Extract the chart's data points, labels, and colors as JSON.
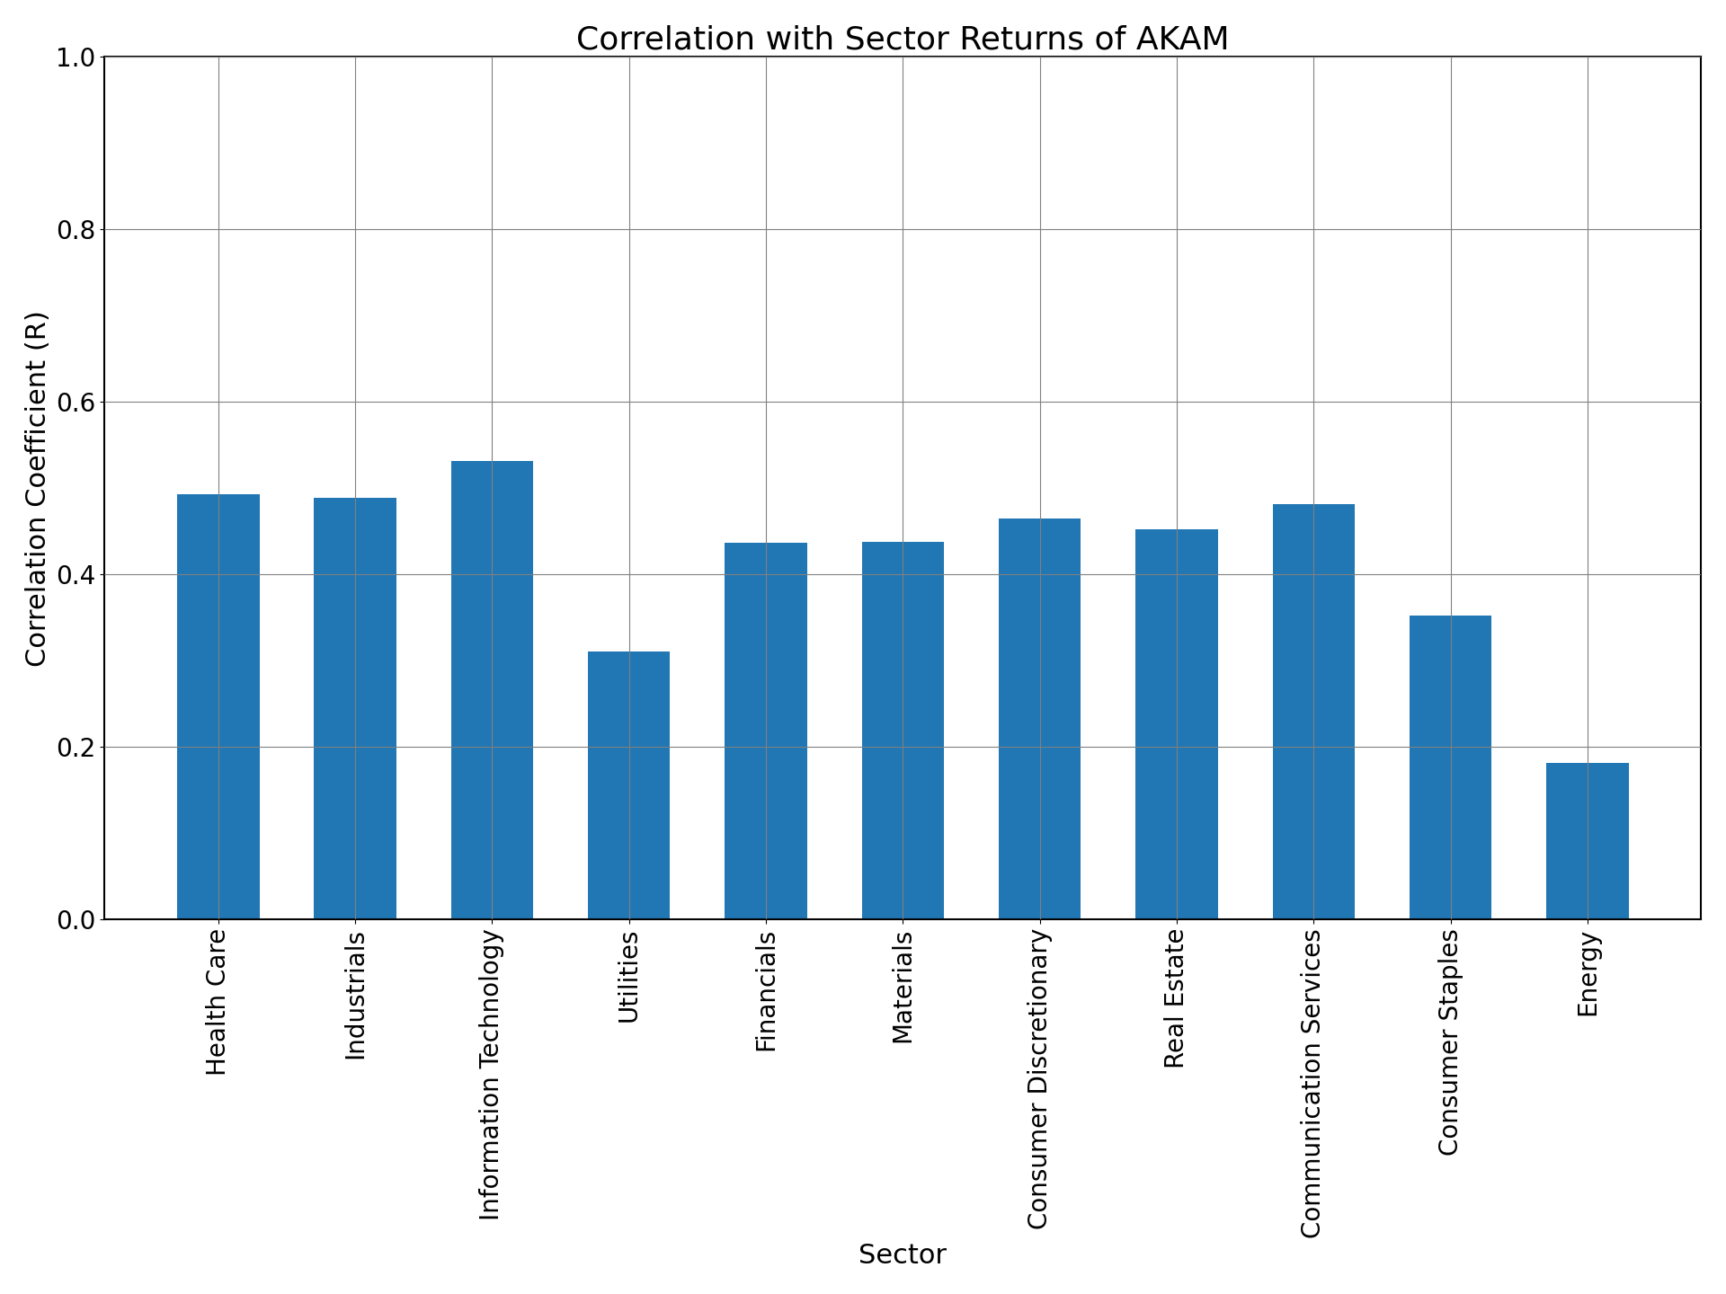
{
  "title": "Correlation with Sector Returns of AKAM",
  "xlabel": "Sector",
  "ylabel": "Correlation Coefficient (R)",
  "categories": [
    "Health Care",
    "Industrials",
    "Information Technology",
    "Utilities",
    "Financials",
    "Materials",
    "Consumer Discretionary",
    "Real Estate",
    "Communication Services",
    "Consumer Staples",
    "Energy"
  ],
  "values": [
    0.493,
    0.489,
    0.531,
    0.311,
    0.437,
    0.438,
    0.465,
    0.452,
    0.481,
    0.352,
    0.181
  ],
  "bar_color": "#2077b4",
  "ylim": [
    0.0,
    1.0
  ],
  "yticks": [
    0.0,
    0.2,
    0.4,
    0.6,
    0.8,
    1.0
  ],
  "title_fontsize": 26,
  "label_fontsize": 22,
  "tick_fontsize": 20,
  "xtick_fontsize": 20
}
